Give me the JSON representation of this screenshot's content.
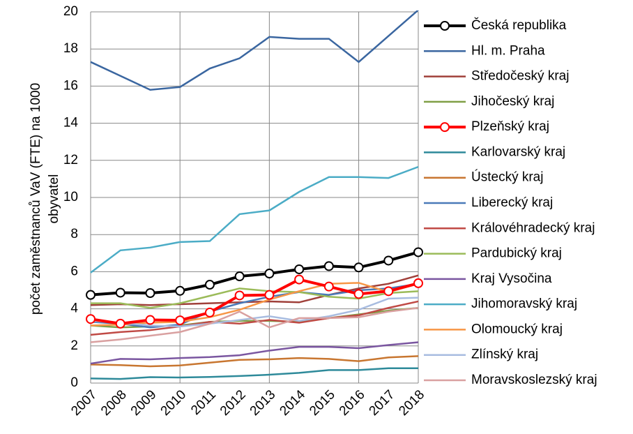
{
  "chart_data": {
    "type": "line",
    "ylabel": [
      "počet zaměstnanců VaV  (FTE)  na 1000",
      "obyvatel"
    ],
    "categories": [
      "2007",
      "2008",
      "2009",
      "2010",
      "2011",
      "2012",
      "2013",
      "2014",
      "2015",
      "2016",
      "2017",
      "2018"
    ],
    "ylim": [
      0,
      20
    ],
    "yticks": [
      0,
      2,
      4,
      6,
      8,
      10,
      12,
      14,
      16,
      18,
      20
    ],
    "grid": true,
    "legend": "right",
    "series": [
      {
        "name": "Česká republika",
        "color": "#000000",
        "width": 4,
        "marker": true,
        "values": [
          4.75,
          4.87,
          4.85,
          4.97,
          5.3,
          5.75,
          5.9,
          6.13,
          6.3,
          6.23,
          6.6,
          7.05
        ]
      },
      {
        "name": "Hl. m. Praha",
        "color": "#3a66a0",
        "width": 2.5,
        "values": [
          17.3,
          16.55,
          15.8,
          15.95,
          16.95,
          17.5,
          18.65,
          18.55,
          18.55,
          17.3,
          18.7,
          20.1
        ]
      },
      {
        "name": "Středočeský kraj",
        "color": "#a0403a",
        "width": 2.5,
        "values": [
          4.2,
          4.25,
          4.2,
          4.25,
          4.3,
          4.35,
          4.4,
          4.35,
          4.75,
          5.1,
          5.35,
          5.8
        ]
      },
      {
        "name": "Jihočeský kraj",
        "color": "#7f9f45",
        "width": 2.5,
        "values": [
          3.1,
          3.0,
          3.05,
          3.1,
          3.3,
          3.35,
          3.35,
          3.3,
          3.5,
          3.7,
          3.9,
          4.05
        ]
      },
      {
        "name": "Plzeňský kraj",
        "color": "#ff0000",
        "width": 4,
        "marker": true,
        "values": [
          3.45,
          3.2,
          3.4,
          3.38,
          3.8,
          4.72,
          4.75,
          5.58,
          5.2,
          4.8,
          4.95,
          5.38
        ]
      },
      {
        "name": "Karlovarský kraj",
        "color": "#2e8a9a",
        "width": 2.5,
        "values": [
          0.25,
          0.22,
          0.32,
          0.3,
          0.33,
          0.38,
          0.45,
          0.55,
          0.7,
          0.7,
          0.8,
          0.8
        ]
      },
      {
        "name": "Ústecký kraj",
        "color": "#c87630",
        "width": 2.5,
        "values": [
          1.0,
          0.97,
          0.9,
          0.95,
          1.1,
          1.25,
          1.28,
          1.35,
          1.3,
          1.18,
          1.38,
          1.45
        ]
      },
      {
        "name": "Liberecký kraj",
        "color": "#4a7ab8",
        "width": 2.5,
        "values": [
          3.3,
          3.2,
          3.0,
          3.15,
          3.85,
          4.3,
          4.65,
          4.9,
          4.75,
          5.0,
          5.1,
          5.35
        ]
      },
      {
        "name": "Královéhradecký kraj",
        "color": "#c04a45",
        "width": 2.5,
        "values": [
          2.6,
          2.75,
          2.85,
          3.05,
          3.3,
          3.2,
          3.4,
          3.25,
          3.5,
          3.65,
          4.05,
          4.4
        ]
      },
      {
        "name": "Pardubický kraj",
        "color": "#9bbb59",
        "width": 2.5,
        "values": [
          4.3,
          4.3,
          4.05,
          4.3,
          4.7,
          5.1,
          4.95,
          4.9,
          4.65,
          4.55,
          4.85,
          4.95
        ]
      },
      {
        "name": "Kraj Vysočina",
        "color": "#7a56a0",
        "width": 2.5,
        "values": [
          1.05,
          1.3,
          1.28,
          1.35,
          1.4,
          1.5,
          1.75,
          1.95,
          1.95,
          1.88,
          2.05,
          2.2
        ]
      },
      {
        "name": "Jihomoravský kraj",
        "color": "#4bacc6",
        "width": 2.5,
        "values": [
          5.95,
          7.15,
          7.3,
          7.6,
          7.65,
          9.1,
          9.3,
          10.3,
          11.1,
          11.1,
          11.05,
          11.65
        ]
      },
      {
        "name": "Olomoucký kraj",
        "color": "#f79646",
        "width": 2.5,
        "values": [
          3.1,
          3.15,
          3.25,
          3.3,
          3.55,
          3.95,
          4.5,
          4.95,
          5.35,
          5.4,
          4.9,
          5.35
        ]
      },
      {
        "name": "Zlínský kraj",
        "color": "#a8bce0",
        "width": 2.5,
        "values": [
          3.35,
          3.25,
          3.1,
          3.05,
          3.2,
          3.4,
          3.6,
          3.35,
          3.6,
          3.95,
          4.55,
          4.6
        ]
      },
      {
        "name": "Moravskoslezský kraj",
        "color": "#d9a0a0",
        "width": 2.5,
        "values": [
          2.2,
          2.35,
          2.55,
          2.75,
          3.2,
          3.85,
          3.0,
          3.5,
          3.5,
          3.55,
          3.85,
          4.05
        ]
      }
    ]
  }
}
